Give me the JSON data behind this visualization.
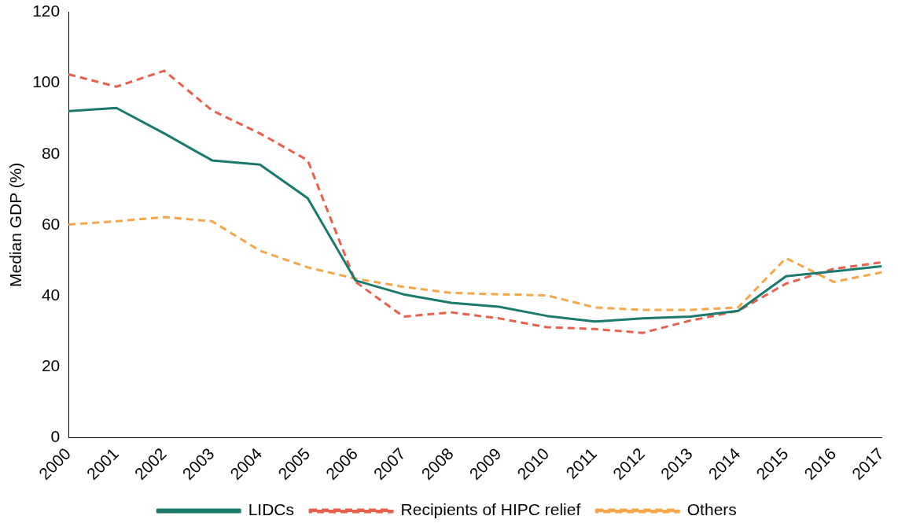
{
  "chart_data": {
    "type": "line",
    "ylabel": "Median GDP (%)",
    "categories": [
      "2000",
      "2001",
      "2002",
      "2003",
      "2004",
      "2005",
      "2006",
      "2007",
      "2008",
      "2009",
      "2010",
      "2011",
      "2012",
      "2013",
      "2014",
      "2015",
      "2016",
      "2017"
    ],
    "series": [
      {
        "name": "LIDCs",
        "color": "#1a7a6e",
        "line_style": "solid",
        "values": [
          92.1,
          93,
          85.8,
          78.2,
          77,
          67.5,
          44.3,
          40.4,
          38,
          36.9,
          34.3,
          32.7,
          33.6,
          34.1,
          35.7,
          45.5,
          46.9,
          48.3
        ]
      },
      {
        "name": "Recipients of HIPC relief",
        "color": "#e8604c",
        "line_style": "dashed",
        "values": [
          102.5,
          99,
          103.5,
          92.3,
          85.8,
          78.2,
          43.9,
          34.1,
          35.3,
          33.6,
          31.1,
          30.6,
          29.5,
          33,
          35.7,
          43.4,
          47.6,
          49.4
        ]
      },
      {
        "name": "Others",
        "color": "#f5a54a",
        "line_style": "dashed",
        "values": [
          60.1,
          61,
          62.2,
          61,
          52.7,
          48,
          44.8,
          42.5,
          40.8,
          40.4,
          40.1,
          36.7,
          36,
          36,
          36.7,
          50.6,
          43.9,
          46.6
        ]
      }
    ],
    "ylim": [
      0,
      120
    ],
    "yticks": [
      0,
      20,
      40,
      60,
      80,
      100,
      120
    ],
    "grid": false,
    "legend": "bottom",
    "marker": "none"
  }
}
